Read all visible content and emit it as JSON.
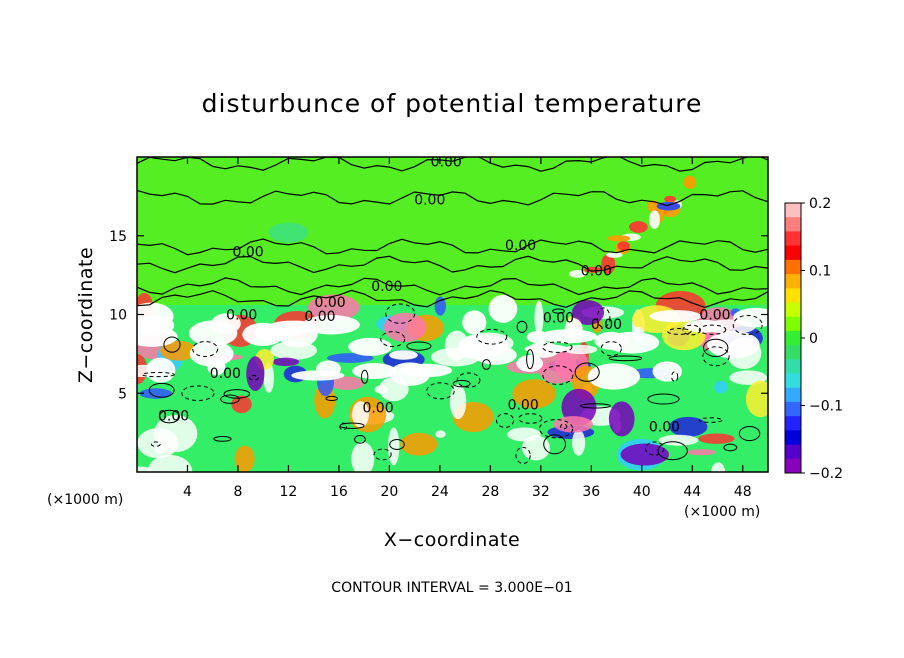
{
  "chart_data": {
    "type": "heatmap",
    "title": "disturbunce of potential temperature",
    "xlabel": "X−coordinate",
    "ylabel": "Z−coordinate",
    "x_unit_label": "(×1000 m)",
    "z_unit_label": "(×1000 m)",
    "footnote": "CONTOUR INTERVAL = 3.000E−01",
    "xlim": [
      0,
      50
    ],
    "ylim": [
      0,
      20
    ],
    "x_ticks": [
      {
        "value": 4,
        "label": "4"
      },
      {
        "value": 8,
        "label": "8"
      },
      {
        "value": 12,
        "label": "12"
      },
      {
        "value": 16,
        "label": "16"
      },
      {
        "value": 20,
        "label": "20"
      },
      {
        "value": 24,
        "label": "24"
      },
      {
        "value": 28,
        "label": "28"
      },
      {
        "value": 32,
        "label": "32"
      },
      {
        "value": 36,
        "label": "36"
      },
      {
        "value": 40,
        "label": "40"
      },
      {
        "value": 44,
        "label": "44"
      },
      {
        "value": 48,
        "label": "48"
      }
    ],
    "y_ticks": [
      {
        "value": 5,
        "label": "5"
      },
      {
        "value": 10,
        "label": "10"
      },
      {
        "value": 15,
        "label": "15"
      }
    ],
    "colorbar": {
      "range": [
        -0.2,
        0.2
      ],
      "ticks": [
        {
          "value": 0.2,
          "label": "0.2"
        },
        {
          "value": 0.1,
          "label": "0.1"
        },
        {
          "value": 0,
          "label": "0"
        },
        {
          "value": -0.1,
          "label": "−0.1"
        },
        {
          "value": -0.2,
          "label": "−0.2"
        }
      ],
      "colors_top_to_bottom": [
        "#ffbfbf",
        "#ff7f7f",
        "#ff3333",
        "#ff0000",
        "#ff7000",
        "#ffb000",
        "#ffe000",
        "#c8ff00",
        "#7fff00",
        "#33ee33",
        "#33dd66",
        "#33ddaa",
        "#33dddd",
        "#33aaff",
        "#3366ff",
        "#2222ff",
        "#0000dd",
        "#5500cc",
        "#8800bb"
      ]
    },
    "contour_labels": [
      {
        "x": 24.5,
        "z": 19.7,
        "text": "0.00"
      },
      {
        "x": 23.2,
        "z": 17.3,
        "text": "0.00"
      },
      {
        "x": 8.8,
        "z": 14.0,
        "text": "0.00"
      },
      {
        "x": 30.4,
        "z": 14.4,
        "text": "0.00"
      },
      {
        "x": 19.8,
        "z": 11.8,
        "text": "0.00"
      },
      {
        "x": 15.3,
        "z": 10.8,
        "text": "0.00"
      },
      {
        "x": 8.3,
        "z": 10.0,
        "text": "0.00"
      },
      {
        "x": 14.5,
        "z": 9.9,
        "text": "0.00"
      },
      {
        "x": 33.4,
        "z": 9.8,
        "text": "0.00"
      },
      {
        "x": 37.2,
        "z": 9.4,
        "text": "0.00"
      },
      {
        "x": 45.8,
        "z": 10.0,
        "text": "0.00"
      },
      {
        "x": 36.4,
        "z": 12.8,
        "text": "0.00"
      },
      {
        "x": 7.0,
        "z": 6.3,
        "text": "0.00"
      },
      {
        "x": 19.1,
        "z": 4.1,
        "text": "0.00"
      },
      {
        "x": 30.6,
        "z": 4.3,
        "text": "0.00"
      },
      {
        "x": 2.9,
        "z": 3.6,
        "text": "0.00"
      },
      {
        "x": 41.8,
        "z": 2.9,
        "text": "0.00"
      }
    ]
  }
}
